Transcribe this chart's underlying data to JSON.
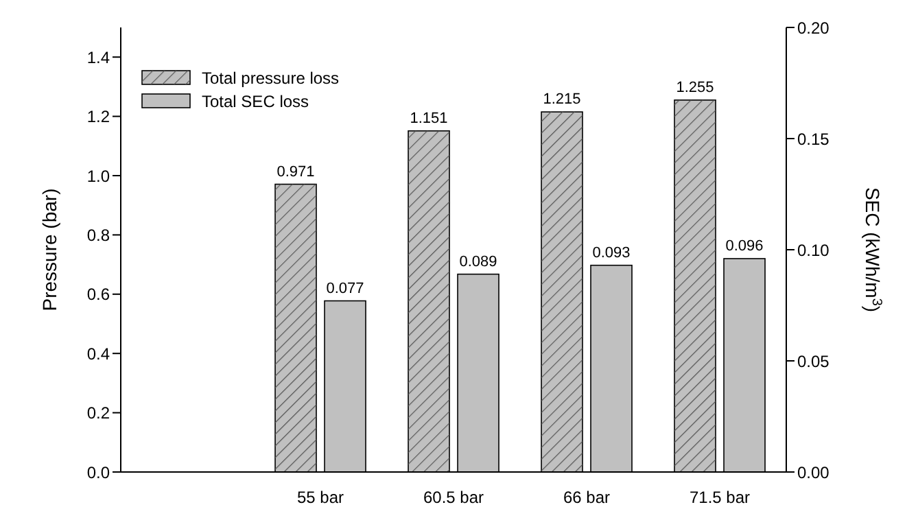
{
  "chart_data": {
    "type": "bar",
    "categories": [
      null,
      "55 bar",
      "60.5 bar",
      "66 bar",
      "71.5 bar"
    ],
    "series": [
      {
        "name": "Total pressure loss",
        "color": "#c0c0c0",
        "values": [
          null,
          0.971,
          1.151,
          1.215,
          1.255
        ]
      },
      {
        "name": "Total SEC loss",
        "color": "#c0c0c0",
        "axis": "y2",
        "values": [
          null,
          0.077,
          0.089,
          0.093,
          0.096
        ]
      }
    ],
    "ylabel": "Pressure (bar)",
    "y2label": "SEC (kWh/m$^{3}$)",
    "ylim": [
      0,
      1.5
    ],
    "yticks": [
      {
        "value": 0,
        "label": "0.0"
      },
      {
        "value": 0.2,
        "label": "0.2"
      },
      {
        "value": 0.4,
        "label": "0.4"
      },
      {
        "value": 0.6,
        "label": "0.6"
      },
      {
        "value": 0.8,
        "label": "0.8"
      },
      {
        "value": 1,
        "label": "1.0"
      },
      {
        "value": 1.2,
        "label": "1.2"
      },
      {
        "value": 1.4,
        "label": "1.4"
      }
    ],
    "y2lim": [
      0,
      0.2
    ],
    "y2ticks": [
      {
        "value": 0,
        "label": "0.00"
      },
      {
        "value": 0.05,
        "label": "0.05"
      },
      {
        "value": 0.1,
        "label": "0.10"
      },
      {
        "value": 0.15,
        "label": "0.15"
      },
      {
        "value": 0.2,
        "label": "0.20"
      }
    ],
    "data_labels": true,
    "legend": "top left"
  }
}
